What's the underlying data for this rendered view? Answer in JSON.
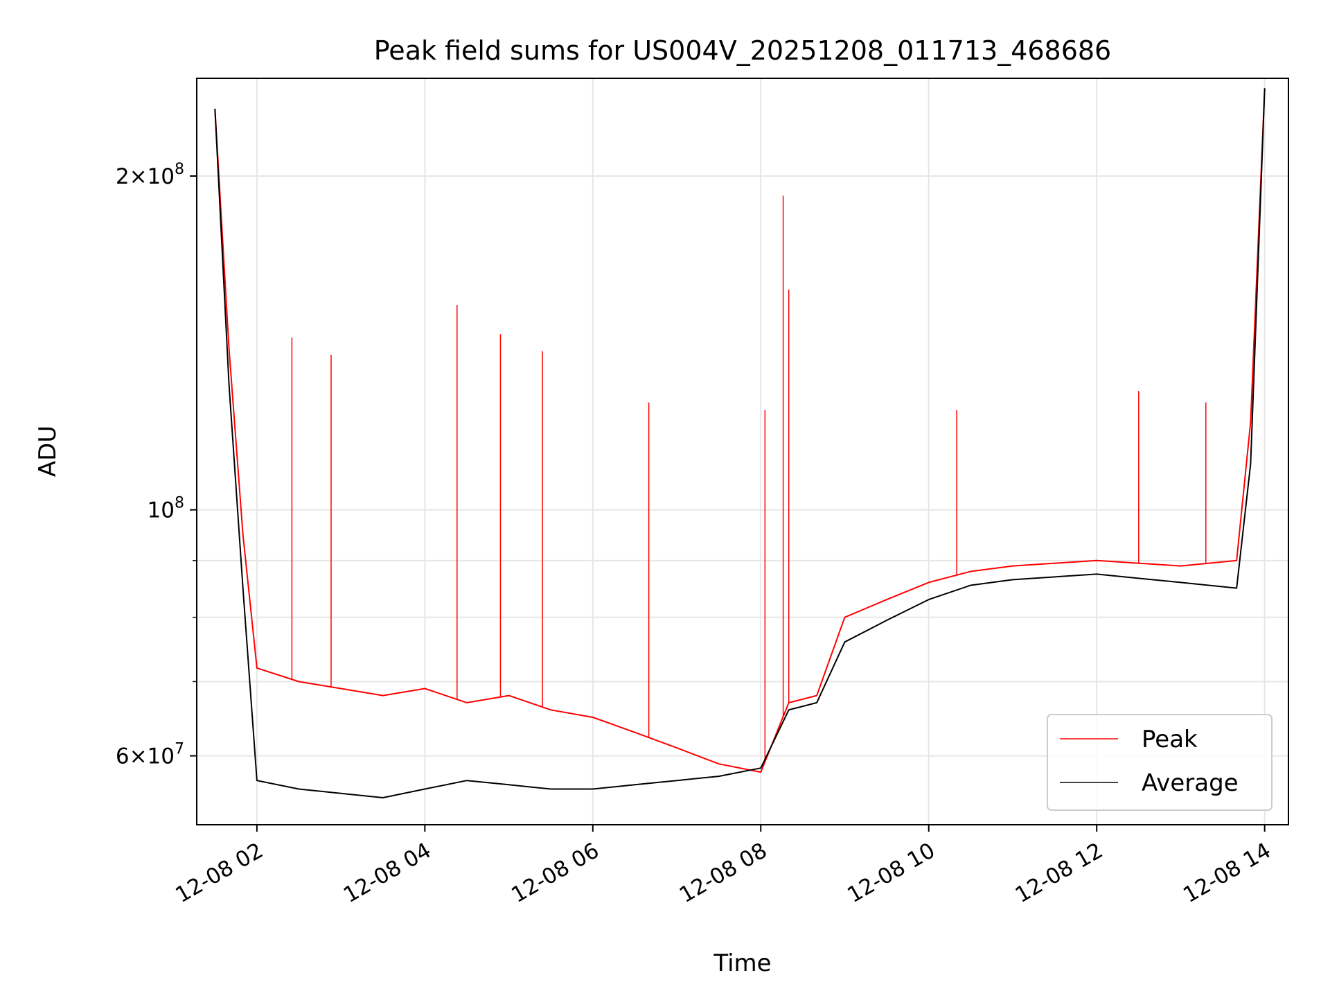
{
  "chart_data": {
    "type": "line",
    "title": "Peak field sums for US004V_20251208_011713_468686",
    "xlabel": "Time",
    "ylabel": "ADU",
    "yscale": "log",
    "xlim": [
      "2025-12-08 01:17",
      "2025-12-08 14:17"
    ],
    "ylim": [
      52000000,
      245000000
    ],
    "grid": true,
    "legend_position": "lower-right",
    "x_ticks": [
      {
        "value": "2025-12-08 02:00",
        "label": "12-08 02"
      },
      {
        "value": "2025-12-08 04:00",
        "label": "12-08 04"
      },
      {
        "value": "2025-12-08 06:00",
        "label": "12-08 06"
      },
      {
        "value": "2025-12-08 08:00",
        "label": "12-08 08"
      },
      {
        "value": "2025-12-08 10:00",
        "label": "12-08 10"
      },
      {
        "value": "2025-12-08 12:00",
        "label": "12-08 12"
      },
      {
        "value": "2025-12-08 14:00",
        "label": "12-08 14"
      }
    ],
    "y_ticks": [
      {
        "value": 60000000,
        "base": "6",
        "exp": "7"
      },
      {
        "value": 100000000,
        "base": "",
        "exp": "8"
      },
      {
        "value": 200000000,
        "base": "2",
        "exp": "8"
      }
    ],
    "y_minor_ticks": [
      70000000,
      80000000,
      90000000
    ],
    "series": [
      {
        "name": "Peak",
        "color": "#ff0000",
        "x": [
          "2025-12-08 01:30",
          "2025-12-08 01:40",
          "2025-12-08 01:50",
          "2025-12-08 02:00",
          "2025-12-08 02:30",
          "2025-12-08 03:00",
          "2025-12-08 03:30",
          "2025-12-08 04:00",
          "2025-12-08 04:30",
          "2025-12-08 05:00",
          "2025-12-08 05:30",
          "2025-12-08 06:00",
          "2025-12-08 06:30",
          "2025-12-08 07:00",
          "2025-12-08 07:30",
          "2025-12-08 08:00",
          "2025-12-08 08:20",
          "2025-12-08 08:40",
          "2025-12-08 09:00",
          "2025-12-08 09:30",
          "2025-12-08 10:00",
          "2025-12-08 10:30",
          "2025-12-08 11:00",
          "2025-12-08 12:00",
          "2025-12-08 13:00",
          "2025-12-08 13:40",
          "2025-12-08 13:50",
          "2025-12-08 14:00"
        ],
        "values": [
          230000000,
          140000000,
          95000000,
          72000000,
          70000000,
          69000000,
          68000000,
          69000000,
          67000000,
          68000000,
          66000000,
          65000000,
          63000000,
          61000000,
          59000000,
          58000000,
          67000000,
          68000000,
          80000000,
          83000000,
          86000000,
          88000000,
          89000000,
          90000000,
          89000000,
          90000000,
          120000000,
          240000000
        ],
        "spikes": [
          {
            "x": "2025-12-08 02:25",
            "value": 143000000
          },
          {
            "x": "2025-12-08 02:53",
            "value": 138000000
          },
          {
            "x": "2025-12-08 04:23",
            "value": 153000000
          },
          {
            "x": "2025-12-08 04:54",
            "value": 144000000
          },
          {
            "x": "2025-12-08 05:24",
            "value": 139000000
          },
          {
            "x": "2025-12-08 06:40",
            "value": 125000000
          },
          {
            "x": "2025-12-08 08:03",
            "value": 123000000
          },
          {
            "x": "2025-12-08 08:16",
            "value": 192000000
          },
          {
            "x": "2025-12-08 08:20",
            "value": 158000000
          },
          {
            "x": "2025-12-08 10:20",
            "value": 123000000
          },
          {
            "x": "2025-12-08 12:30",
            "value": 128000000
          },
          {
            "x": "2025-12-08 13:18",
            "value": 125000000
          }
        ]
      },
      {
        "name": "Average",
        "color": "#000000",
        "x": [
          "2025-12-08 01:30",
          "2025-12-08 01:40",
          "2025-12-08 01:50",
          "2025-12-08 02:00",
          "2025-12-08 02:30",
          "2025-12-08 03:00",
          "2025-12-08 03:30",
          "2025-12-08 04:00",
          "2025-12-08 04:30",
          "2025-12-08 05:00",
          "2025-12-08 05:30",
          "2025-12-08 06:00",
          "2025-12-08 06:30",
          "2025-12-08 07:00",
          "2025-12-08 07:30",
          "2025-12-08 08:00",
          "2025-12-08 08:20",
          "2025-12-08 08:40",
          "2025-12-08 09:00",
          "2025-12-08 09:30",
          "2025-12-08 10:00",
          "2025-12-08 10:30",
          "2025-12-08 11:00",
          "2025-12-08 12:00",
          "2025-12-08 13:00",
          "2025-12-08 13:40",
          "2025-12-08 13:50",
          "2025-12-08 14:00"
        ],
        "values": [
          230000000,
          130000000,
          85000000,
          57000000,
          56000000,
          55500000,
          55000000,
          56000000,
          57000000,
          56500000,
          56000000,
          56000000,
          56500000,
          57000000,
          57500000,
          58500000,
          66000000,
          67000000,
          76000000,
          79500000,
          83000000,
          85500000,
          86500000,
          87500000,
          86000000,
          85000000,
          110000000,
          240000000
        ]
      }
    ]
  }
}
